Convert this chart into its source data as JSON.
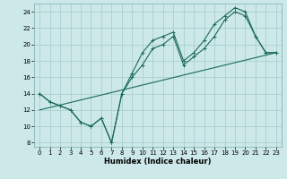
{
  "xlabel": "Humidex (Indice chaleur)",
  "x_ticks": [
    0,
    1,
    2,
    3,
    4,
    5,
    6,
    7,
    8,
    9,
    10,
    11,
    12,
    13,
    14,
    15,
    16,
    17,
    18,
    19,
    20,
    21,
    22,
    23
  ],
  "ylim": [
    7.5,
    25.0
  ],
  "xlim": [
    -0.5,
    23.5
  ],
  "y_ticks": [
    8,
    10,
    12,
    14,
    16,
    18,
    20,
    22,
    24
  ],
  "bg_color": "#cce8e8",
  "grid_color": "#aad0d0",
  "line_color": "#1a6b5a",
  "line1_x": [
    0,
    1,
    2,
    3,
    4,
    5,
    6,
    7,
    8,
    9,
    10,
    11,
    12,
    13,
    14,
    15,
    16,
    17,
    18,
    19,
    20,
    21,
    22,
    23
  ],
  "line1_y": [
    14,
    13,
    12.5,
    12,
    10.5,
    10,
    11,
    8,
    14,
    16.5,
    19,
    20.5,
    21,
    21.5,
    18,
    19,
    20.5,
    22.5,
    23.5,
    24.5,
    24,
    21,
    19,
    19
  ],
  "line2_x": [
    0,
    1,
    2,
    3,
    4,
    5,
    6,
    7,
    8,
    9,
    10,
    11,
    12,
    13,
    14,
    15,
    16,
    17,
    18,
    19,
    20,
    21,
    22,
    23
  ],
  "line2_y": [
    14,
    13,
    12.5,
    12,
    10.5,
    10,
    11,
    8,
    14,
    16,
    17.5,
    19.5,
    20,
    21,
    17.5,
    18.5,
    19.5,
    21,
    23,
    24,
    23.5,
    21,
    19,
    19
  ],
  "line3_x": [
    0,
    23
  ],
  "line3_y": [
    12,
    19
  ]
}
